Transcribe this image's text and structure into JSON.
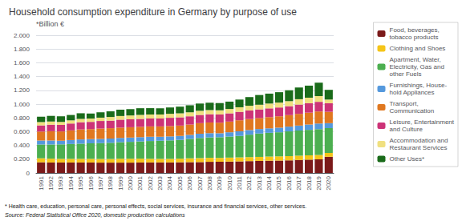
{
  "chart_data": {
    "type": "bar",
    "title": "Household consumption expenditure in Germany by purpose of use",
    "ylabel": "*Billion €",
    "annotations": [
      "* Health care, education, personal care, personal effects, social services, insurance and financial services, other services.",
      "Source: Federal Statistical Office 2020, domestic production calculations"
    ],
    "categories": [
      "1991",
      "1992",
      "1993",
      "1994",
      "1995",
      "1996",
      "1997",
      "1998",
      "1999",
      "2000",
      "2001",
      "2002",
      "2003",
      "2004",
      "2005",
      "2006",
      "2007",
      "2008",
      "2009",
      "2010",
      "2011",
      "2012",
      "2013",
      "2014",
      "2015",
      "2016",
      "2017",
      "2018",
      "2019",
      "2020"
    ],
    "series": [
      {
        "name": "Food, beverages,\ntobacco products",
        "color": "#7b1a1a",
        "values": [
          0.155,
          0.152,
          0.152,
          0.152,
          0.152,
          0.152,
          0.15,
          0.15,
          0.15,
          0.15,
          0.152,
          0.153,
          0.153,
          0.153,
          0.155,
          0.157,
          0.158,
          0.162,
          0.163,
          0.165,
          0.168,
          0.172,
          0.175,
          0.178,
          0.18,
          0.183,
          0.188,
          0.193,
          0.198,
          0.235
        ]
      },
      {
        "name": "Clothing and Shoes",
        "color": "#f5c518",
        "values": [
          0.058,
          0.056,
          0.053,
          0.053,
          0.053,
          0.053,
          0.053,
          0.053,
          0.057,
          0.057,
          0.056,
          0.053,
          0.052,
          0.052,
          0.053,
          0.056,
          0.058,
          0.058,
          0.056,
          0.058,
          0.058,
          0.058,
          0.058,
          0.06,
          0.061,
          0.061,
          0.063,
          0.063,
          0.063,
          0.056
        ]
      },
      {
        "name": "Apartment, Water,\nElectricity, Gas and\nother Fuels",
        "color": "#4caf50",
        "values": [
          0.2,
          0.205,
          0.21,
          0.215,
          0.22,
          0.225,
          0.23,
          0.235,
          0.24,
          0.245,
          0.25,
          0.258,
          0.263,
          0.268,
          0.272,
          0.282,
          0.292,
          0.296,
          0.3,
          0.306,
          0.312,
          0.326,
          0.34,
          0.345,
          0.35,
          0.36,
          0.365,
          0.37,
          0.375,
          0.36
        ]
      },
      {
        "name": "Furnishings, House-\nhold Appliances",
        "color": "#5599dd",
        "values": [
          0.058,
          0.058,
          0.053,
          0.058,
          0.062,
          0.062,
          0.062,
          0.062,
          0.062,
          0.062,
          0.062,
          0.062,
          0.058,
          0.058,
          0.058,
          0.058,
          0.062,
          0.062,
          0.058,
          0.062,
          0.067,
          0.067,
          0.065,
          0.065,
          0.067,
          0.069,
          0.072,
          0.077,
          0.082,
          0.072
        ]
      },
      {
        "name": "Transport,\nCommunication",
        "color": "#e07820",
        "values": [
          0.13,
          0.135,
          0.135,
          0.14,
          0.145,
          0.145,
          0.15,
          0.15,
          0.15,
          0.15,
          0.15,
          0.15,
          0.15,
          0.15,
          0.15,
          0.15,
          0.153,
          0.155,
          0.153,
          0.155,
          0.16,
          0.16,
          0.16,
          0.163,
          0.165,
          0.167,
          0.17,
          0.173,
          0.175,
          0.165
        ]
      },
      {
        "name": "Leisure, Entertainment\nand Culture",
        "color": "#cc3377",
        "values": [
          0.09,
          0.095,
          0.095,
          0.1,
          0.105,
          0.105,
          0.11,
          0.11,
          0.115,
          0.115,
          0.115,
          0.115,
          0.115,
          0.12,
          0.12,
          0.12,
          0.12,
          0.12,
          0.12,
          0.12,
          0.123,
          0.125,
          0.125,
          0.127,
          0.128,
          0.13,
          0.135,
          0.137,
          0.14,
          0.125
        ]
      },
      {
        "name": "Accommodation and\nRestaurant Services",
        "color": "#f0e080",
        "values": [
          0.048,
          0.046,
          0.043,
          0.046,
          0.048,
          0.048,
          0.048,
          0.053,
          0.053,
          0.056,
          0.058,
          0.058,
          0.058,
          0.058,
          0.058,
          0.058,
          0.06,
          0.06,
          0.06,
          0.063,
          0.066,
          0.068,
          0.068,
          0.07,
          0.071,
          0.073,
          0.078,
          0.08,
          0.083,
          0.053
        ]
      },
      {
        "name": "Other Uses*",
        "color": "#1a6b1a",
        "values": [
          0.078,
          0.082,
          0.082,
          0.078,
          0.082,
          0.073,
          0.078,
          0.082,
          0.092,
          0.092,
          0.097,
          0.092,
          0.09,
          0.092,
          0.097,
          0.102,
          0.105,
          0.107,
          0.105,
          0.107,
          0.112,
          0.126,
          0.141,
          0.144,
          0.151,
          0.158,
          0.17,
          0.175,
          0.195,
          0.141
        ]
      }
    ],
    "ylim": [
      0.0,
      2.0
    ],
    "yticks": [
      0,
      {
        "value": 0.2,
        "label": "0.200"
      },
      {
        "value": 0.4,
        "label": "0.400"
      },
      {
        "value": 0.6,
        "label": "0.600"
      },
      {
        "value": 0.8,
        "label": "0.800"
      },
      {
        "value": 1.0,
        "label": "1.000"
      },
      {
        "value": 1.2,
        "label": "1.200"
      },
      {
        "value": 1.4,
        "label": "1.400"
      },
      {
        "value": 1.6,
        "label": "1.600"
      },
      {
        "value": 1.8,
        "label": "1.800"
      },
      {
        "value": 2.0,
        "label": "2.000"
      }
    ],
    "stacked": true,
    "grid": true,
    "legend": "right"
  }
}
